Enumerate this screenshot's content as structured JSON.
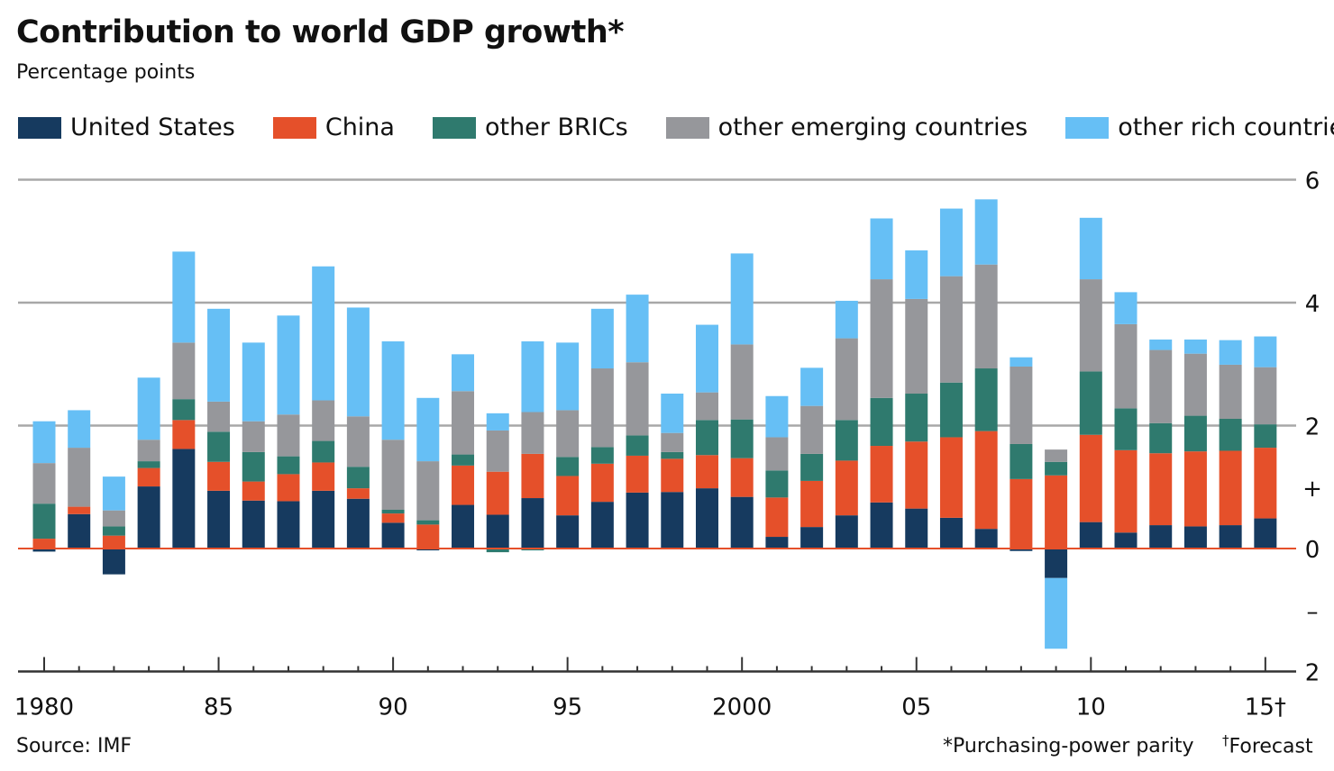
{
  "chart_data": {
    "type": "bar",
    "stacked": true,
    "title": "Contribution to world GDP growth*",
    "subtitle": "Percentage points",
    "categories": [
      1980,
      1981,
      1982,
      1983,
      1984,
      1985,
      1986,
      1987,
      1988,
      1989,
      1990,
      1991,
      1992,
      1993,
      1994,
      1995,
      1996,
      1997,
      1998,
      1999,
      2000,
      2001,
      2002,
      2003,
      2004,
      2005,
      2006,
      2007,
      2008,
      2009,
      2010,
      2011,
      2012,
      2013,
      2014,
      2015
    ],
    "x_tick_labels": [
      {
        "year": 1980,
        "label": "1980"
      },
      {
        "year": 1985,
        "label": "85"
      },
      {
        "year": 1990,
        "label": "90"
      },
      {
        "year": 1995,
        "label": "95"
      },
      {
        "year": 2000,
        "label": "2000"
      },
      {
        "year": 2005,
        "label": "05"
      },
      {
        "year": 2010,
        "label": "10"
      },
      {
        "year": 2015,
        "label": "15†"
      }
    ],
    "y_tick_labels": [
      {
        "value": 6,
        "label": "6"
      },
      {
        "value": 4,
        "label": "4"
      },
      {
        "value": 2,
        "label": "2"
      },
      {
        "value": 1,
        "label": "+"
      },
      {
        "value": 0,
        "label": "0"
      },
      {
        "value": -1,
        "label": "–"
      },
      {
        "value": -2,
        "label": "2"
      }
    ],
    "ylim": [
      -2,
      6
    ],
    "y_axis_position": "right",
    "grid": true,
    "legend_position": "top",
    "series": [
      {
        "name": "United States",
        "color": "#163a5f",
        "values": [
          -0.05,
          0.56,
          -0.42,
          1.01,
          1.62,
          0.94,
          0.78,
          0.77,
          0.94,
          0.81,
          0.42,
          -0.03,
          0.71,
          0.55,
          0.82,
          0.54,
          0.76,
          0.91,
          0.92,
          0.98,
          0.84,
          0.19,
          0.35,
          0.54,
          0.75,
          0.65,
          0.5,
          0.32,
          -0.04,
          -0.48,
          0.43,
          0.26,
          0.38,
          0.36,
          0.38,
          0.49
        ]
      },
      {
        "name": "China",
        "color": "#e5502a",
        "values": [
          0.16,
          0.12,
          0.21,
          0.3,
          0.47,
          0.47,
          0.31,
          0.44,
          0.46,
          0.17,
          0.15,
          0.39,
          0.64,
          0.7,
          0.72,
          0.64,
          0.62,
          0.6,
          0.54,
          0.54,
          0.63,
          0.64,
          0.75,
          0.89,
          0.92,
          1.09,
          1.31,
          1.59,
          1.13,
          1.19,
          1.42,
          1.34,
          1.17,
          1.22,
          1.21,
          1.15
        ]
      },
      {
        "name": "other BRICs",
        "color": "#2f7a6e",
        "values": [
          0.57,
          0.0,
          0.15,
          0.11,
          0.34,
          0.49,
          0.48,
          0.29,
          0.35,
          0.35,
          0.06,
          0.07,
          0.18,
          -0.06,
          -0.03,
          0.31,
          0.27,
          0.33,
          0.11,
          0.57,
          0.63,
          0.44,
          0.44,
          0.66,
          0.78,
          0.78,
          0.89,
          1.02,
          0.57,
          0.22,
          1.03,
          0.68,
          0.49,
          0.58,
          0.52,
          0.38
        ]
      },
      {
        "name": "other emerging countries",
        "color": "#96979b",
        "values": [
          0.66,
          0.96,
          0.26,
          0.35,
          0.92,
          0.49,
          0.5,
          0.68,
          0.66,
          0.82,
          1.14,
          0.96,
          1.03,
          0.67,
          0.68,
          0.76,
          1.28,
          1.19,
          0.31,
          0.45,
          1.22,
          0.54,
          0.78,
          1.33,
          1.93,
          1.54,
          1.73,
          1.69,
          1.26,
          0.2,
          1.5,
          1.37,
          1.19,
          1.01,
          0.88,
          0.93
        ]
      },
      {
        "name": "other rich countries",
        "color": "#66bff5",
        "values": [
          0.68,
          0.61,
          0.55,
          1.01,
          1.48,
          1.51,
          1.28,
          1.61,
          2.18,
          1.77,
          1.6,
          1.03,
          0.6,
          0.28,
          1.15,
          1.1,
          0.97,
          1.1,
          0.64,
          1.1,
          1.48,
          0.67,
          0.62,
          0.61,
          0.99,
          0.79,
          1.1,
          1.06,
          0.15,
          -1.15,
          1.0,
          0.52,
          0.17,
          0.23,
          0.4,
          0.5
        ]
      }
    ],
    "zero_line_color": "#e5502a",
    "source": "Source: IMF",
    "footnote_1": "*Purchasing-power parity",
    "footnote_2": "Forecast",
    "footnote_2_mark": "†"
  }
}
